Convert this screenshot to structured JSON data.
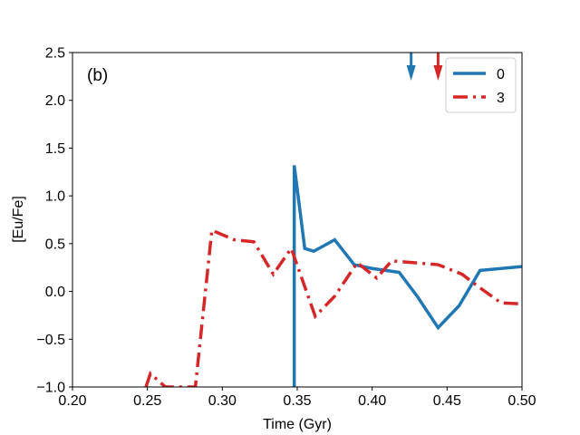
{
  "chart_data": {
    "type": "line",
    "panel_label": "(b)",
    "xlabel": "Time (Gyr)",
    "ylabel": "[Eu/Fe]",
    "xlim": [
      0.2,
      0.5
    ],
    "ylim": [
      -1.0,
      2.5
    ],
    "x_ticks": [
      "0.20",
      "0.25",
      "0.30",
      "0.35",
      "0.40",
      "0.45",
      "0.50"
    ],
    "y_ticks": [
      "2.5",
      "2.0",
      "1.5",
      "1.0",
      "0.5",
      "0.0",
      "−0.5",
      "−1.0"
    ],
    "grid": false,
    "legend_position": "top-right",
    "series": [
      {
        "name": "0",
        "color": "#1f77b4",
        "linestyle": "solid",
        "arrow_x": 0.426,
        "points": [
          [
            0.348,
            -1.0
          ],
          [
            0.348,
            1.32
          ],
          [
            0.355,
            0.45
          ],
          [
            0.361,
            0.42
          ],
          [
            0.375,
            0.54
          ],
          [
            0.388,
            0.28
          ],
          [
            0.4,
            0.24
          ],
          [
            0.418,
            0.2
          ],
          [
            0.43,
            -0.05
          ],
          [
            0.444,
            -0.38
          ],
          [
            0.458,
            -0.15
          ],
          [
            0.472,
            0.22
          ],
          [
            0.5,
            0.26
          ]
        ]
      },
      {
        "name": "3",
        "color": "#d62728",
        "linestyle": "dashdot",
        "arrow_x": 0.444,
        "points": [
          [
            0.249,
            -1.0
          ],
          [
            0.252,
            -0.86
          ],
          [
            0.262,
            -1.0
          ],
          [
            0.282,
            -1.0
          ],
          [
            0.293,
            0.64
          ],
          [
            0.308,
            0.54
          ],
          [
            0.321,
            0.52
          ],
          [
            0.334,
            0.18
          ],
          [
            0.346,
            0.45
          ],
          [
            0.362,
            -0.26
          ],
          [
            0.375,
            -0.05
          ],
          [
            0.39,
            0.3
          ],
          [
            0.403,
            0.14
          ],
          [
            0.413,
            0.32
          ],
          [
            0.444,
            0.28
          ],
          [
            0.46,
            0.18
          ],
          [
            0.47,
            0.06
          ],
          [
            0.486,
            -0.12
          ],
          [
            0.5,
            -0.13
          ]
        ]
      }
    ]
  }
}
